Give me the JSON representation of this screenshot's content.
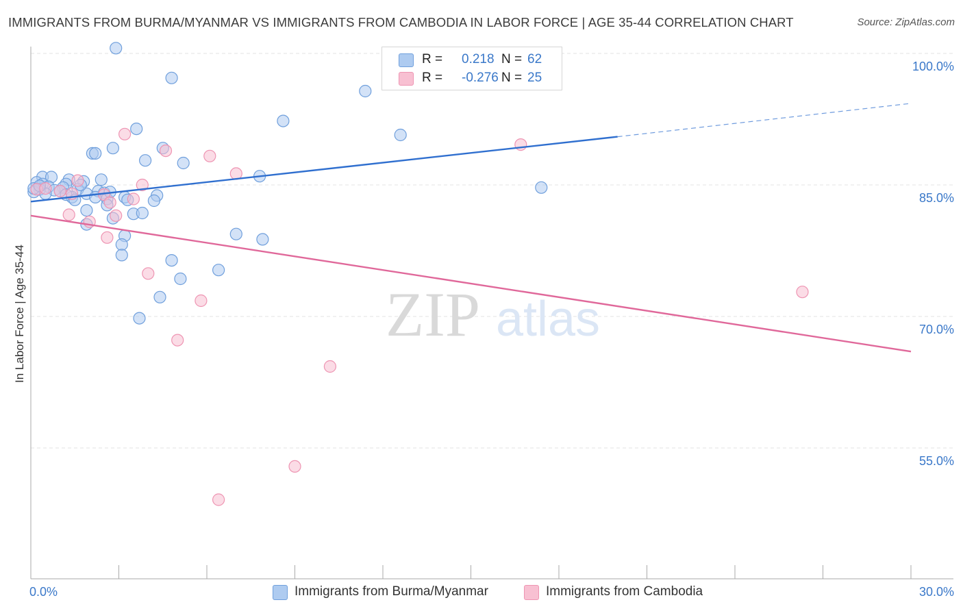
{
  "title": "IMMIGRANTS FROM BURMA/MYANMAR VS IMMIGRANTS FROM CAMBODIA IN LABOR FORCE | AGE 35-44 CORRELATION CHART",
  "source": "Source: ZipAtlas.com",
  "watermark": {
    "zip": "ZIP",
    "atlas": "atlas"
  },
  "legend": {
    "r_label": "R =",
    "n_label": "N =",
    "rows": [
      {
        "r": "0.218",
        "n": "62",
        "fill": "#aecbf0",
        "stroke": "#6f9fdc"
      },
      {
        "r": "-0.276",
        "n": "25",
        "fill": "#f8c0d2",
        "stroke": "#ee94b2"
      }
    ]
  },
  "bottom_legend": [
    {
      "label": "Immigrants from Burma/Myanmar",
      "fill": "#aecbf0",
      "stroke": "#6f9fdc"
    },
    {
      "label": "Immigrants from Cambodia",
      "fill": "#f8c0d2",
      "stroke": "#ee94b2"
    }
  ],
  "chart_data": {
    "type": "scatter",
    "xlabel": "",
    "ylabel": "In Labor Force | Age 35-44",
    "xlim": [
      0,
      30
    ],
    "ylim": [
      40,
      103
    ],
    "x_tick_labels": [
      {
        "value": 0,
        "label": "0.0%"
      },
      {
        "value": 30,
        "label": "30.0%"
      }
    ],
    "y_ticks": [
      {
        "value": 100,
        "label": "100.0%"
      },
      {
        "value": 85,
        "label": "85.0%"
      },
      {
        "value": 70,
        "label": "70.0%"
      },
      {
        "value": 55,
        "label": "55.0%"
      }
    ],
    "x_minor_ticks": [
      3,
      6,
      9,
      12,
      15,
      18,
      21,
      24,
      27,
      30
    ],
    "grid": true,
    "series": [
      {
        "name": "Immigrants from Burma/Myanmar",
        "color": "#6f9fdc",
        "fill": "#aecbf0",
        "trend": {
          "x0": 0,
          "y0": 83.1,
          "x1": 20,
          "y1": 90.5,
          "dash_to_x": 30,
          "dash_to_y": 94.3,
          "color": "#2f6fcf"
        },
        "points": [
          [
            2.9,
            100.6
          ],
          [
            4.8,
            97.2
          ],
          [
            11.4,
            95.7
          ],
          [
            8.6,
            92.3
          ],
          [
            12.6,
            90.7
          ],
          [
            3.6,
            91.4
          ],
          [
            2.8,
            89.2
          ],
          [
            4.5,
            89.2
          ],
          [
            2.1,
            88.6
          ],
          [
            2.2,
            88.6
          ],
          [
            3.9,
            87.8
          ],
          [
            5.2,
            87.5
          ],
          [
            0.4,
            85.9
          ],
          [
            0.7,
            85.9
          ],
          [
            1.3,
            85.6
          ],
          [
            2.4,
            85.6
          ],
          [
            7.8,
            86.0
          ],
          [
            17.4,
            84.7
          ],
          [
            0.2,
            85.3
          ],
          [
            0.4,
            85.1
          ],
          [
            1.2,
            85.1
          ],
          [
            1.8,
            85.4
          ],
          [
            0.6,
            84.8
          ],
          [
            1.1,
            84.7
          ],
          [
            0.3,
            84.5
          ],
          [
            0.8,
            84.4
          ],
          [
            1.0,
            84.3
          ],
          [
            1.6,
            84.5
          ],
          [
            1.9,
            84.0
          ],
          [
            2.3,
            84.3
          ],
          [
            2.5,
            84.1
          ],
          [
            0.5,
            84.0
          ],
          [
            1.4,
            83.6
          ],
          [
            2.2,
            83.6
          ],
          [
            3.2,
            83.6
          ],
          [
            4.3,
            83.8
          ],
          [
            0.1,
            84.2
          ],
          [
            1.5,
            83.3
          ],
          [
            2.6,
            83.4
          ],
          [
            3.3,
            83.3
          ],
          [
            4.2,
            83.2
          ],
          [
            2.6,
            82.7
          ],
          [
            1.9,
            82.1
          ],
          [
            3.5,
            81.7
          ],
          [
            3.8,
            81.8
          ],
          [
            2.8,
            81.2
          ],
          [
            1.9,
            80.5
          ],
          [
            3.2,
            79.2
          ],
          [
            7.0,
            79.4
          ],
          [
            7.9,
            78.8
          ],
          [
            3.1,
            78.2
          ],
          [
            3.1,
            77.0
          ],
          [
            4.8,
            76.4
          ],
          [
            6.4,
            75.3
          ],
          [
            5.1,
            74.3
          ],
          [
            4.4,
            72.2
          ],
          [
            3.7,
            69.8
          ],
          [
            0.1,
            84.6
          ],
          [
            0.3,
            84.9
          ],
          [
            1.7,
            85.0
          ],
          [
            2.7,
            84.2
          ],
          [
            1.2,
            83.9
          ]
        ]
      },
      {
        "name": "Immigrants from Cambodia",
        "color": "#ee94b2",
        "fill": "#f8c0d2",
        "trend": {
          "x0": 0,
          "y0": 81.5,
          "x1": 30,
          "y1": 66.0,
          "color": "#e0689a"
        },
        "points": [
          [
            3.2,
            90.8
          ],
          [
            16.7,
            89.6
          ],
          [
            4.6,
            88.9
          ],
          [
            6.1,
            88.3
          ],
          [
            7.0,
            86.3
          ],
          [
            3.8,
            85.0
          ],
          [
            1.6,
            85.5
          ],
          [
            0.2,
            84.5
          ],
          [
            1.4,
            84.0
          ],
          [
            2.5,
            83.9
          ],
          [
            3.5,
            83.4
          ],
          [
            2.7,
            83.0
          ],
          [
            1.3,
            81.6
          ],
          [
            2.9,
            81.5
          ],
          [
            2.0,
            80.8
          ],
          [
            2.6,
            79.0
          ],
          [
            4.0,
            74.9
          ],
          [
            5.8,
            71.8
          ],
          [
            26.3,
            72.8
          ],
          [
            5.0,
            67.3
          ],
          [
            10.2,
            64.3
          ],
          [
            9.0,
            52.9
          ],
          [
            6.4,
            49.1
          ],
          [
            1.0,
            84.3
          ],
          [
            0.5,
            84.6
          ]
        ]
      }
    ]
  }
}
